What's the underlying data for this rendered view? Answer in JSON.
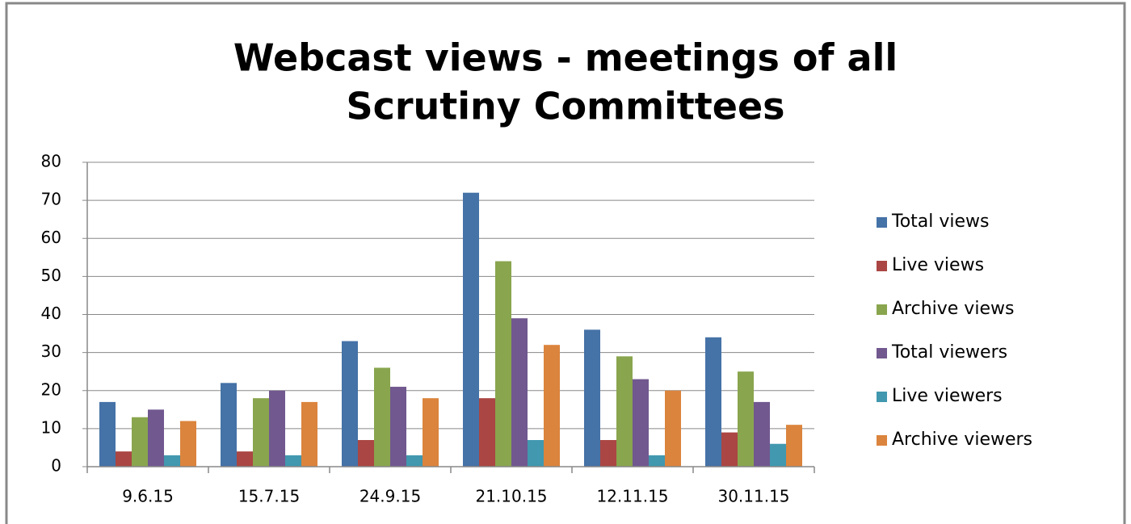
{
  "chart_data": {
    "type": "bar",
    "title": [
      "Webcast views - meetings of all",
      "Scrutiny Committees"
    ],
    "categories": [
      "9.6.15",
      "15.7.15",
      "24.9.15",
      "21.10.15",
      "12.11.15",
      "30.11.15"
    ],
    "series": [
      {
        "name": "Total views",
        "color": "#4572a7",
        "values": [
          17,
          22,
          33,
          72,
          36,
          34
        ]
      },
      {
        "name": "Live views",
        "color": "#aa4643",
        "values": [
          4,
          4,
          7,
          18,
          7,
          9
        ]
      },
      {
        "name": "Archive views",
        "color": "#89a54e",
        "values": [
          13,
          18,
          26,
          54,
          29,
          25
        ]
      },
      {
        "name": "Total viewers",
        "color": "#71588f",
        "values": [
          15,
          20,
          21,
          39,
          23,
          17
        ]
      },
      {
        "name": "Live viewers",
        "color": "#4198af",
        "values": [
          3,
          3,
          3,
          7,
          3,
          6
        ]
      },
      {
        "name": "Archive viewers",
        "color": "#db843d",
        "values": [
          12,
          17,
          18,
          32,
          20,
          11
        ]
      }
    ],
    "ylim": [
      0,
      80
    ],
    "yticks": [
      0,
      10,
      20,
      30,
      40,
      50,
      60,
      70,
      80
    ],
    "grid": true,
    "legend": "right"
  }
}
